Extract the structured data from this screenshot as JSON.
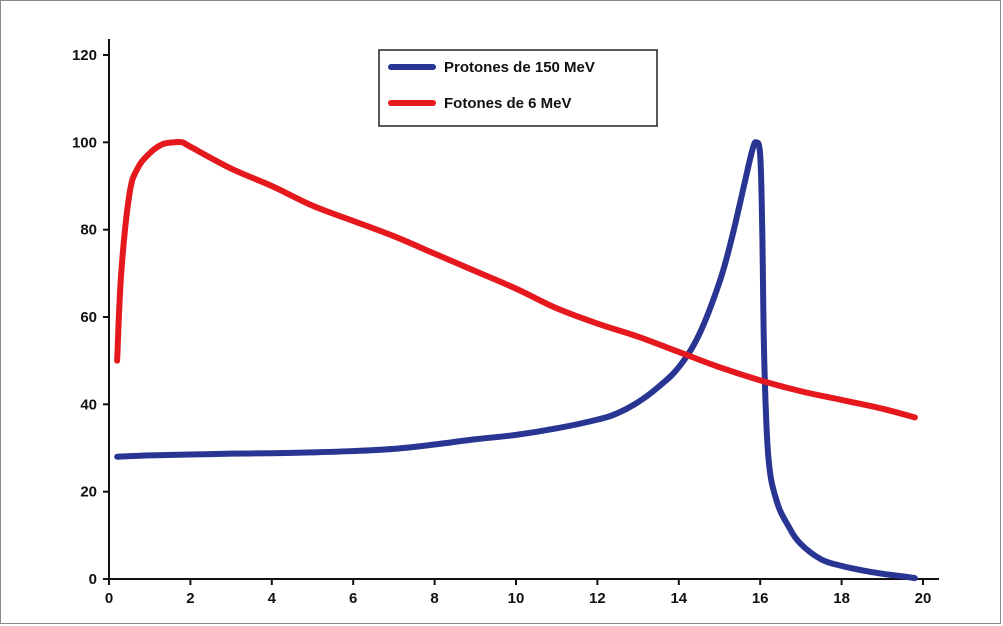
{
  "chart_data": {
    "type": "line",
    "title": "",
    "xlabel": "",
    "ylabel": "",
    "xlim": [
      0,
      20
    ],
    "ylim": [
      0,
      120
    ],
    "x_ticks": [
      0,
      2,
      4,
      6,
      8,
      10,
      12,
      14,
      16,
      18,
      20
    ],
    "y_ticks": [
      0,
      20,
      40,
      60,
      80,
      100,
      120
    ],
    "grid": false,
    "legend_position": "top-center",
    "series": [
      {
        "name": "Protones de 150 MeV",
        "color": "#283593",
        "x": [
          0.2,
          1,
          2,
          3,
          4,
          5,
          6,
          7,
          8,
          9,
          10,
          11,
          12,
          12.5,
          13,
          13.5,
          14,
          14.5,
          15,
          15.3,
          15.6,
          15.8,
          15.9,
          16.0,
          16.05,
          16.1,
          16.2,
          16.4,
          16.7,
          17,
          17.5,
          18,
          18.5,
          19,
          19.5,
          19.8
        ],
        "y": [
          28,
          28.3,
          28.5,
          28.7,
          28.8,
          29,
          29.3,
          29.8,
          30.8,
          32,
          33,
          34.5,
          36.5,
          38,
          40.5,
          44,
          48.5,
          56,
          68,
          78,
          90,
          98,
          100,
          97,
          80,
          50,
          28,
          18,
          12,
          8,
          4.5,
          3,
          2,
          1.2,
          0.6,
          0.2
        ]
      },
      {
        "name": "Fotones de 6 MeV",
        "color": "#e4181d",
        "x": [
          0.2,
          0.3,
          0.5,
          0.7,
          1,
          1.3,
          1.6,
          1.8,
          2,
          3,
          4,
          5,
          6,
          7,
          8,
          9,
          10,
          11,
          12,
          13,
          14,
          15,
          16,
          17,
          18,
          19,
          19.8
        ],
        "y": [
          50,
          70,
          88,
          94,
          97.5,
          99.5,
          100,
          100,
          99,
          94,
          90,
          85.5,
          82,
          78.5,
          74.5,
          70.5,
          66.5,
          62,
          58.5,
          55.5,
          52,
          48.5,
          45.5,
          43,
          41,
          39,
          37
        ]
      }
    ]
  }
}
